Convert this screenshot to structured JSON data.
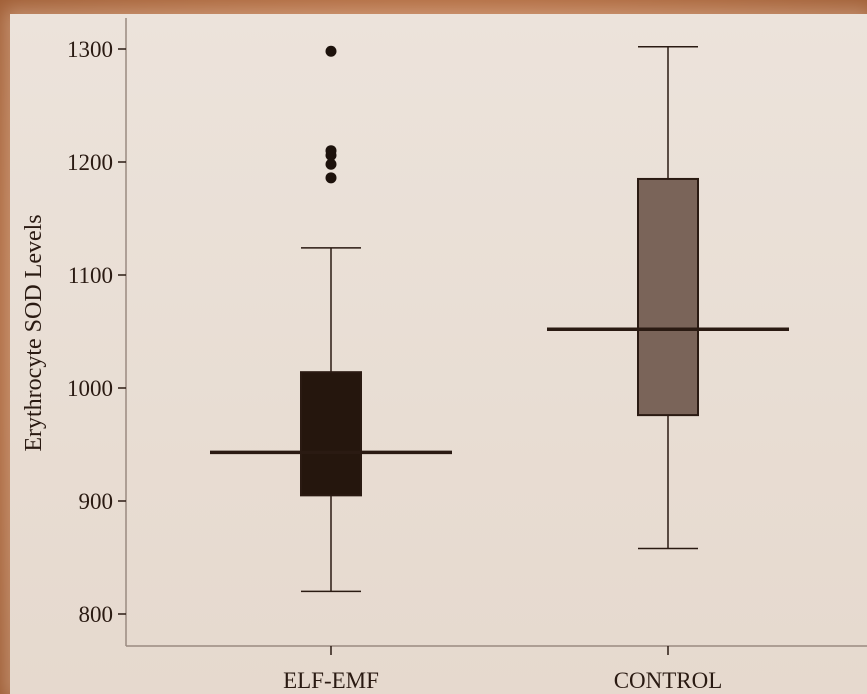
{
  "chart_data": {
    "type": "box",
    "title": "",
    "xlabel": "",
    "ylabel": "Erythrocyte SOD Levels",
    "ylim": [
      790,
      1320
    ],
    "y_ticks": [
      800,
      900,
      1000,
      1100,
      1200,
      1300
    ],
    "categories": [
      "ELF-EMF",
      "CONTROL"
    ],
    "boxes": [
      {
        "category": "ELF-EMF",
        "whisker_low": 820,
        "q1": 905,
        "median": 943,
        "q3": 1014,
        "whisker_high": 1124,
        "outliers": [
          1186,
          1198,
          1206,
          1210,
          1298
        ],
        "color": "#25160d"
      },
      {
        "category": "CONTROL",
        "whisker_low": 858,
        "q1": 976,
        "median": 1052,
        "q3": 1185,
        "whisker_high": 1302,
        "outliers": [],
        "color": "#7a6459"
      }
    ],
    "grid": false,
    "legend": "none"
  },
  "colors": {
    "frame": "#b06a3f",
    "panel": "#ebe1d8",
    "ink": "#2a1a12"
  }
}
